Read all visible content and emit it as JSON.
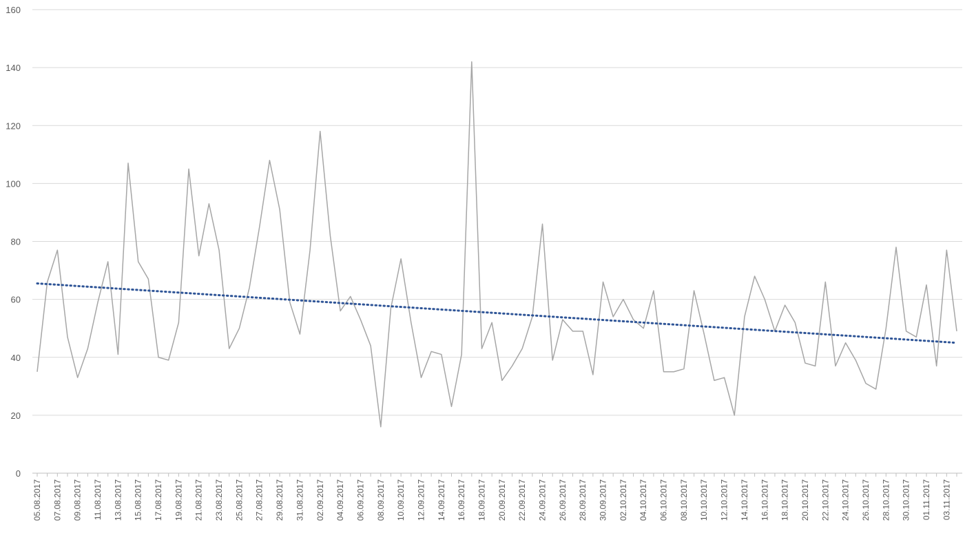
{
  "chart_data": {
    "type": "line",
    "title": "",
    "xlabel": "",
    "ylabel": "",
    "ylim": [
      0,
      160
    ],
    "yticks": [
      0,
      20,
      40,
      60,
      80,
      100,
      120,
      140,
      160
    ],
    "grid": true,
    "legend": "none",
    "x_start": "05.08.2017",
    "x_step_days": 1,
    "x_tick_every": 2,
    "x_tick_labels": [
      "05.08.2017",
      "07.08.2017",
      "09.08.2017",
      "11.08.2017",
      "13.08.2017",
      "15.08.2017",
      "17.08.2017",
      "19.08.2017",
      "21.08.2017",
      "23.08.2017",
      "25.08.2017",
      "27.08.2017",
      "29.08.2017",
      "31.08.2017",
      "02.09.2017",
      "04.09.2017",
      "06.09.2017",
      "08.09.2017",
      "10.09.2017",
      "12.09.2017",
      "14.09.2017",
      "16.09.2017",
      "18.09.2017",
      "20.09.2017",
      "22.09.2017",
      "24.09.2017",
      "26.09.2017",
      "28.09.2017",
      "30.09.2017",
      "02.10.2017",
      "04.10.2017",
      "06.10.2017",
      "08.10.2017",
      "10.10.2017",
      "12.10.2017",
      "14.10.2017",
      "16.10.2017",
      "18.10.2017",
      "20.10.2017",
      "22.10.2017",
      "24.10.2017",
      "26.10.2017",
      "28.10.2017",
      "30.10.2017",
      "01.11.2017",
      "03.11.2017"
    ],
    "series": [
      {
        "color": "#a6a6a6",
        "values": [
          35,
          66,
          77,
          47,
          33,
          43,
          59,
          73,
          41,
          107,
          73,
          67,
          40,
          39,
          52,
          105,
          75,
          93,
          77,
          43,
          50,
          64,
          85,
          108,
          91,
          59,
          48,
          77,
          118,
          82,
          56,
          61,
          53,
          44,
          16,
          57,
          74,
          52,
          33,
          42,
          41,
          23,
          41,
          142,
          43,
          52,
          32,
          37,
          43,
          54,
          86,
          39,
          53,
          49,
          49,
          34,
          66,
          54,
          60,
          53,
          50,
          63,
          35,
          35,
          36,
          63,
          48,
          32,
          33,
          20,
          54,
          68,
          60,
          49,
          58,
          52,
          38,
          37,
          66,
          37,
          45,
          39,
          31,
          29,
          50,
          78,
          49,
          47,
          65,
          37,
          77,
          49
        ]
      },
      {
        "kind": "linear-trendline",
        "color": "#2f5597",
        "style": "dotted",
        "start": 65.5,
        "end": 45.0
      }
    ]
  }
}
